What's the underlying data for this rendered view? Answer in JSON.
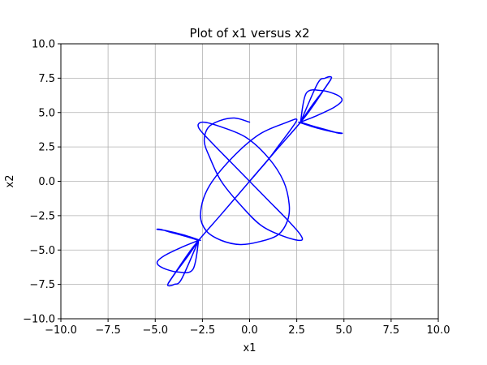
{
  "chart_data": {
    "type": "line",
    "title": "Plot of x1 versus x2",
    "xlabel": "x1",
    "ylabel": "x2",
    "xlim": [
      -10,
      10
    ],
    "ylim": [
      -10,
      10
    ],
    "grid": true,
    "xticks": [
      -10,
      -7.5,
      -5,
      -2.5,
      0,
      2.5,
      5,
      7.5,
      10
    ],
    "yticks": [
      -10,
      -7.5,
      -5,
      -2.5,
      0,
      2.5,
      5,
      7.5,
      10
    ],
    "xtick_labels": [
      "−10.0",
      "−7.5",
      "−5.0",
      "−2.5",
      "0.0",
      "2.5",
      "5.0",
      "7.5",
      "10.0"
    ],
    "ytick_labels": [
      "−10.0",
      "−7.5",
      "−5.0",
      "−2.5",
      "0.0",
      "2.5",
      "5.0",
      "7.5",
      "10.0"
    ],
    "series": [
      {
        "color": "#0000ff",
        "x": [
          0.0,
          0.5,
          1.0,
          1.6,
          2.2,
          2.5,
          2.0,
          0.5,
          -1.0,
          -2.2,
          -2.6,
          -2.3,
          -1.5,
          -0.5,
          0.5,
          1.5,
          2.0,
          2.1,
          1.8,
          1.0,
          -0.2,
          -1.6,
          -2.5,
          -2.7,
          -2.0,
          -1.0,
          0.0,
          1.0,
          2.0,
          2.7,
          2.7,
          1.8,
          0.6,
          -0.5,
          -1.5,
          -2.1,
          -2.4,
          -2.2,
          -1.6,
          -0.8,
          0.0
        ],
        "y": [
          0.0,
          0.8,
          1.6,
          2.7,
          3.8,
          4.5,
          4.3,
          3.4,
          1.6,
          -0.5,
          -2.4,
          -3.6,
          -4.3,
          -4.6,
          -4.4,
          -3.9,
          -2.9,
          -1.7,
          0.0,
          1.7,
          3.2,
          4.0,
          4.3,
          3.9,
          2.8,
          1.4,
          0.0,
          -1.4,
          -2.8,
          -3.9,
          -4.3,
          -4.0,
          -3.2,
          -1.7,
          0.0,
          1.7,
          2.9,
          3.9,
          4.4,
          4.6,
          4.3
        ]
      },
      {
        "color": "#0000ff",
        "x": [
          2.7,
          3.4,
          4.2,
          4.7,
          4.9,
          4.4,
          3.5,
          2.6
        ],
        "y": [
          4.3,
          4.0,
          3.7,
          3.5,
          3.5,
          3.6,
          3.9,
          4.3
        ]
      },
      {
        "color": "#0000ff",
        "x": [
          2.7,
          3.6,
          4.5,
          4.9,
          4.6,
          3.8,
          3.0,
          2.7
        ],
        "y": [
          4.3,
          4.8,
          5.4,
          5.9,
          6.3,
          6.6,
          6.4,
          4.3
        ]
      },
      {
        "color": "#0000ff",
        "x": [
          2.7,
          3.3,
          3.9,
          4.3,
          4.3,
          4.0,
          3.6,
          2.7
        ],
        "y": [
          4.3,
          5.5,
          6.6,
          7.4,
          7.6,
          7.5,
          7.1,
          4.3
        ]
      },
      {
        "color": "#0000ff",
        "x": [
          -2.7,
          -3.4,
          -4.2,
          -4.7,
          -4.9,
          -4.4,
          -3.5,
          -2.6
        ],
        "y": [
          -4.3,
          -4.0,
          -3.7,
          -3.5,
          -3.5,
          -3.6,
          -3.9,
          -4.3
        ]
      },
      {
        "color": "#0000ff",
        "x": [
          -2.7,
          -3.6,
          -4.5,
          -4.9,
          -4.6,
          -3.8,
          -3.0,
          -2.7
        ],
        "y": [
          -4.3,
          -4.8,
          -5.4,
          -5.9,
          -6.3,
          -6.6,
          -6.4,
          -4.3
        ]
      },
      {
        "color": "#0000ff",
        "x": [
          -2.7,
          -3.3,
          -3.9,
          -4.3,
          -4.3,
          -4.0,
          -3.6,
          -2.7
        ],
        "y": [
          -4.3,
          -5.5,
          -6.6,
          -7.4,
          -7.6,
          -7.5,
          -7.1,
          -4.3
        ]
      },
      {
        "color": "#0000ff",
        "x": [
          -4.3,
          -3.0,
          -1.5,
          0.0,
          1.5,
          3.0,
          4.3
        ],
        "y": [
          -7.4,
          -4.8,
          -2.4,
          0.0,
          2.4,
          4.8,
          7.4
        ]
      }
    ]
  }
}
